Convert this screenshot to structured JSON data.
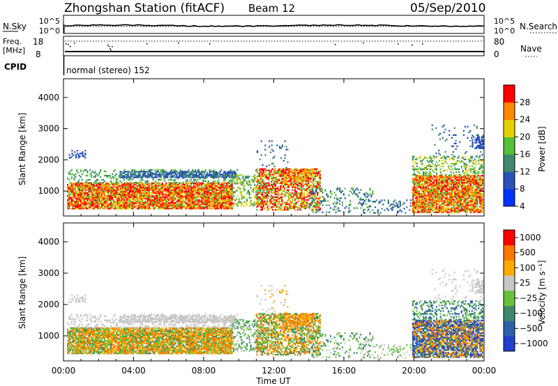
{
  "header": {
    "station": "Zhongshan Station (fitACF)",
    "beam": "Beam 12",
    "date": "05/Sep/2010"
  },
  "top_panels": {
    "nsky_label": "N.Sky",
    "nsky_ticks": [
      "10^5",
      "10^0"
    ],
    "nsearch_ticks": [
      "10^5",
      "10^0"
    ],
    "nsearch_label": "N.Search",
    "freq_label_line1": "Freq.",
    "freq_label_line2": "[MHz]",
    "freq_ticks": [
      "18",
      "8"
    ],
    "nave_ticks": [
      "80",
      "0"
    ],
    "nave_label": "Nave",
    "cpid_label": "CPID",
    "cpid_value": "normal (stereo) 152"
  },
  "chart_data": [
    {
      "type": "heatmap",
      "name": "power",
      "ylabel": "Slant Range [km]",
      "xlabel": "",
      "yticks": [
        "1000",
        "2000",
        "3000",
        "4000"
      ],
      "ylim": [
        200,
        4600
      ],
      "colorbar_label": "Power [dB]",
      "colorbar_ticks": [
        "28",
        "24",
        "20",
        "16",
        "12",
        "8",
        "4"
      ],
      "colors": [
        "#0033ff",
        "#2a52b8",
        "#3f8a6a",
        "#55c23a",
        "#e8d000",
        "#ff8800",
        "#ff0000"
      ]
    },
    {
      "type": "heatmap",
      "name": "velocity",
      "ylabel": "Slant Range [km]",
      "xlabel": "Time UT",
      "yticks": [
        "1000",
        "2000",
        "3000",
        "4000"
      ],
      "ylim": [
        200,
        4600
      ],
      "xticks": [
        "00:00",
        "04:00",
        "08:00",
        "12:00",
        "16:00",
        "20:00",
        "00:00"
      ],
      "colorbar_label": "Velocity [m s⁻¹]",
      "colorbar_ticks": [
        "1000",
        "500",
        "100",
        "25",
        "−25",
        "−100",
        "−500",
        "−1000"
      ],
      "colors": [
        "#1f3fd0",
        "#2a62a8",
        "#3d8a6a",
        "#66c23a",
        "#c8c8c8",
        "#ffaa00",
        "#ff7700",
        "#ff0000"
      ]
    }
  ]
}
